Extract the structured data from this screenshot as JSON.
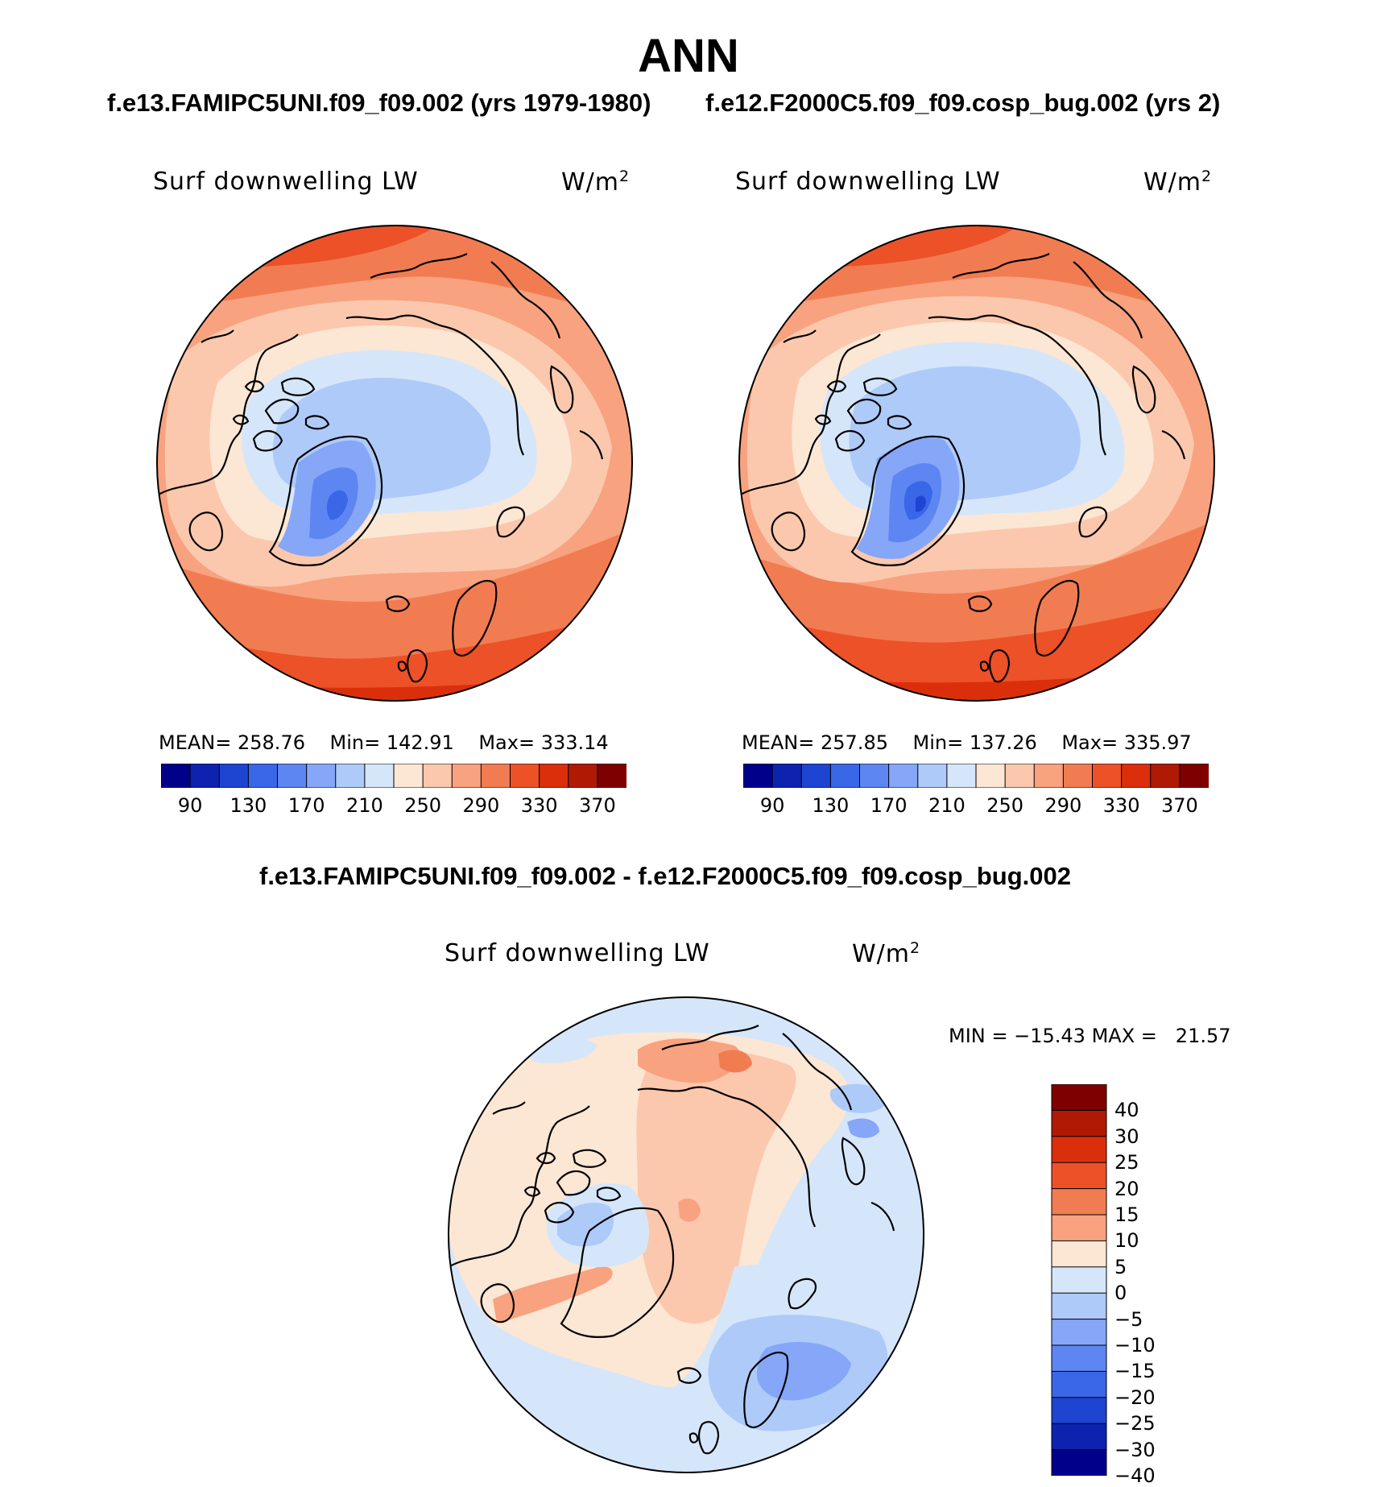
{
  "figure": {
    "title": "ANN",
    "case1_title": "f.e13.FAMIPC5UNI.f09_f09.002 (yrs 1979-1980)",
    "case2_title": "f.e12.F2000C5.f09_f09.cosp_bug.002 (yrs 2)",
    "diff_title": "f.e13.FAMIPC5UNI.f09_f09.002 - f.e12.F2000C5.f09_f09.cosp_bug.002"
  },
  "panels": [
    {
      "variable": "Surf downwelling LW",
      "units": "W/m",
      "units_sup": "2",
      "stats": {
        "mean_label": "MEAN=",
        "mean": "258.76",
        "min_label": "Min=",
        "min": "142.91",
        "max_label": "Max=",
        "max": "333.14"
      }
    },
    {
      "variable": "Surf downwelling LW",
      "units": "W/m",
      "units_sup": "2",
      "stats": {
        "mean_label": "MEAN=",
        "mean": "257.85",
        "min_label": "Min=",
        "min": "137.26",
        "max_label": "Max=",
        "max": "335.97"
      }
    },
    {
      "variable": "Surf downwelling LW",
      "units": "W/m",
      "units_sup": "2",
      "stats": {
        "min_label": "MIN =",
        "min": "−15.43",
        "max_label": "MAX =",
        "max": "21.57"
      }
    }
  ],
  "colorbars": {
    "abs_colors": [
      "#00008b",
      "#0d23b0",
      "#1d45d2",
      "#3a66e8",
      "#5e86f2",
      "#86a6f7",
      "#aecaf9",
      "#d5e6fa",
      "#fce6d4",
      "#fbc8ad",
      "#f8a27f",
      "#f27c52",
      "#ec5128",
      "#db2f0c",
      "#b01a04",
      "#7f0000"
    ],
    "abs_ticks": [
      "90",
      "130",
      "170",
      "210",
      "250",
      "290",
      "330",
      "370"
    ],
    "diff_colors": [
      "#7f0000",
      "#b01a04",
      "#db2f0c",
      "#ec5128",
      "#f27c52",
      "#f8a27f",
      "#fce6d4",
      "#d5e6fa",
      "#aecaf9",
      "#86a6f7",
      "#5e86f2",
      "#3a66e8",
      "#1d45d2",
      "#0d23b0",
      "#00008b"
    ],
    "diff_ticks": [
      "40",
      "30",
      "25",
      "20",
      "15",
      "10",
      "5",
      "0",
      "−5",
      "−10",
      "−15",
      "−20",
      "−25",
      "−30",
      "−40"
    ]
  },
  "chart_data": [
    {
      "type": "heatmap",
      "title": "Surf downwelling LW",
      "units": "W/m2",
      "projection": "north polar stereographic",
      "case": "f.e13.FAMIPC5UNI.f09_f09.002 (yrs 1979-1980)",
      "levels": [
        90,
        110,
        130,
        150,
        170,
        190,
        210,
        230,
        250,
        270,
        290,
        310,
        330,
        350,
        370
      ],
      "mean": 258.76,
      "min": 142.91,
      "max": 333.14
    },
    {
      "type": "heatmap",
      "title": "Surf downwelling LW",
      "units": "W/m2",
      "projection": "north polar stereographic",
      "case": "f.e12.F2000C5.f09_f09.cosp_bug.002 (yrs 2)",
      "levels": [
        90,
        110,
        130,
        150,
        170,
        190,
        210,
        230,
        250,
        270,
        290,
        310,
        330,
        350,
        370
      ],
      "mean": 257.85,
      "min": 137.26,
      "max": 335.97
    },
    {
      "type": "heatmap",
      "title": "Surf downwelling LW",
      "units": "W/m2",
      "projection": "north polar stereographic",
      "case": "f.e13.FAMIPC5UNI.f09_f09.002 - f.e12.F2000C5.f09_f09.cosp_bug.002",
      "levels": [
        -40,
        -30,
        -25,
        -20,
        -15,
        -10,
        -5,
        0,
        5,
        10,
        15,
        20,
        25,
        30,
        40
      ],
      "min": -15.43,
      "max": 21.57
    }
  ]
}
